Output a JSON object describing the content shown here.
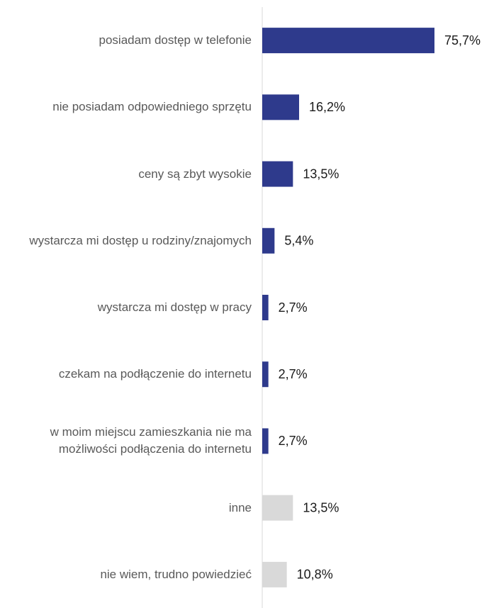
{
  "chart_data": {
    "type": "bar",
    "orientation": "horizontal",
    "categories": [
      "posiadam dostęp w telefonie",
      "nie posiadam odpowiedniego sprzętu",
      "ceny są zbyt wysokie",
      "wystarcza mi dostęp u rodziny/znajomych",
      "wystarcza mi dostęp w pracy",
      "czekam na podłączenie do internetu",
      "w moim miejscu zamieszkania nie ma możliwości podłączenia do internetu",
      "inne",
      "nie wiem, trudno powiedzieć"
    ],
    "values": [
      75.7,
      16.2,
      13.5,
      5.4,
      2.7,
      2.7,
      2.7,
      13.5,
      10.8
    ],
    "value_labels": [
      "75,7%",
      "16,2%",
      "13,5%",
      "5,4%",
      "2,7%",
      "2,7%",
      "2,7%",
      "13,5%",
      "10,8%"
    ],
    "colors": [
      "#2e3a8c",
      "#2e3a8c",
      "#2e3a8c",
      "#2e3a8c",
      "#2e3a8c",
      "#2e3a8c",
      "#2e3a8c",
      "#d9d9d9",
      "#d9d9d9"
    ],
    "xlim": [
      0,
      100
    ]
  }
}
